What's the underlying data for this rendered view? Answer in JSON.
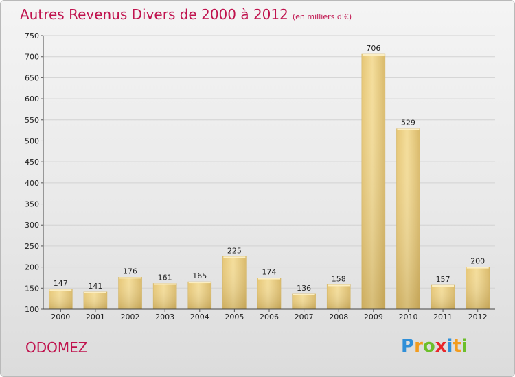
{
  "chart_data": {
    "type": "bar",
    "title": "Autres Revenus Divers de 2000 à 2012",
    "subtitle": "(en milliers d'€)",
    "categories": [
      "2000",
      "2001",
      "2002",
      "2003",
      "2004",
      "2005",
      "2006",
      "2007",
      "2008",
      "2009",
      "2010",
      "2011",
      "2012"
    ],
    "values": [
      147,
      141,
      176,
      161,
      165,
      225,
      174,
      136,
      158,
      706,
      529,
      157,
      200
    ],
    "ylim": [
      100,
      750
    ],
    "yticks": [
      100,
      150,
      200,
      250,
      300,
      350,
      400,
      450,
      500,
      550,
      600,
      650,
      700,
      750
    ],
    "grid": true,
    "xlabel": "",
    "ylabel": ""
  },
  "place_name": "ODOMEZ",
  "logo": {
    "text": "Proxiti",
    "p": "P",
    "r": "r",
    "o": "o",
    "x": "x",
    "i1": "i",
    "t": "t",
    "i2": "i"
  },
  "colors": {
    "title": "#c0134e",
    "bar": "#e9cf85",
    "bar_edge": "#c9a95a"
  }
}
